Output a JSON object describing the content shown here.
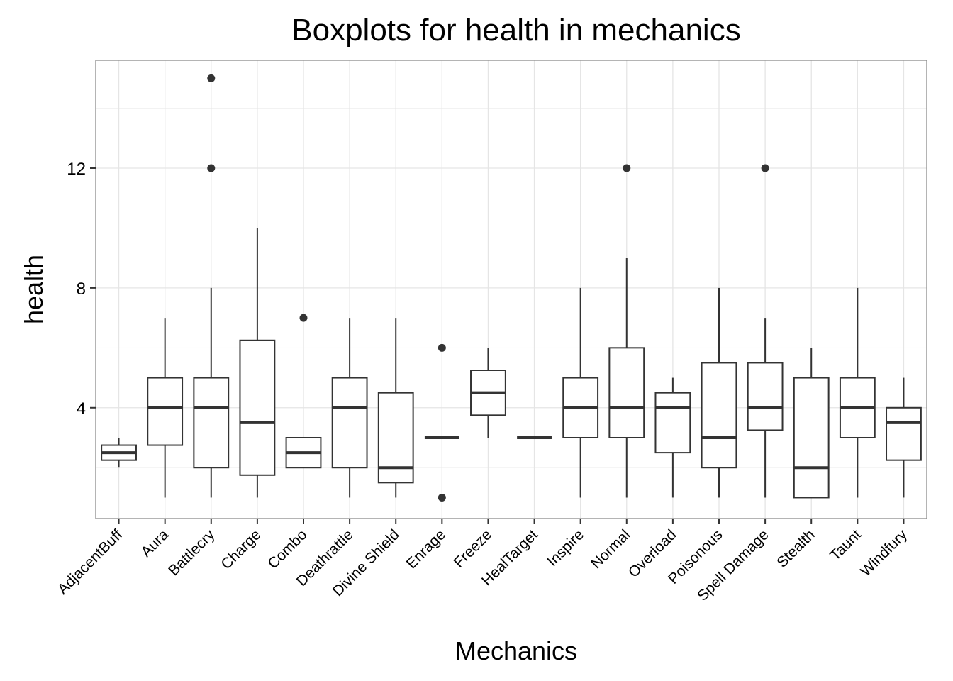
{
  "chart_data": {
    "type": "boxplot",
    "title": "Boxplots for health in mechanics",
    "xlabel": "Mechanics",
    "ylabel": "health",
    "ylim": [
      0.3,
      15.6
    ],
    "yticks": [
      4,
      8,
      12
    ],
    "ytick_labels": [
      "4",
      "8",
      "12"
    ],
    "grid": true,
    "legend": "none",
    "colors": {
      "box_stroke": "#333333",
      "grid": "#e5e5e5",
      "panel_border": "#8c8c8c"
    },
    "categories": [
      "AdjacentBuff",
      "Aura",
      "Battlecry",
      "Charge",
      "Combo",
      "Deathrattle",
      "Divine Shield",
      "Enrage",
      "Freeze",
      "HealTarget",
      "Inspire",
      "Normal",
      "Overload",
      "Poisonous",
      "Spell Damage",
      "Stealth",
      "Taunt",
      "Windfury"
    ],
    "boxes": [
      {
        "category": "AdjacentBuff",
        "min": 2,
        "q1": 2.25,
        "median": 2.5,
        "q3": 2.75,
        "max": 3,
        "outliers": []
      },
      {
        "category": "Aura",
        "min": 1,
        "q1": 2.75,
        "median": 4,
        "q3": 5,
        "max": 7,
        "outliers": []
      },
      {
        "category": "Battlecry",
        "min": 1,
        "q1": 2,
        "median": 4,
        "q3": 5,
        "max": 8,
        "outliers": [
          12,
          15
        ]
      },
      {
        "category": "Charge",
        "min": 1,
        "q1": 1.75,
        "median": 3.5,
        "q3": 6.25,
        "max": 10,
        "outliers": []
      },
      {
        "category": "Combo",
        "min": 2,
        "q1": 2,
        "median": 2.5,
        "q3": 3,
        "max": 3,
        "outliers": [
          7
        ]
      },
      {
        "category": "Deathrattle",
        "min": 1,
        "q1": 2,
        "median": 4,
        "q3": 5,
        "max": 7,
        "outliers": []
      },
      {
        "category": "Divine Shield",
        "min": 1,
        "q1": 1.5,
        "median": 2,
        "q3": 4.5,
        "max": 7,
        "outliers": []
      },
      {
        "category": "Enrage",
        "min": 3,
        "q1": 3,
        "median": 3,
        "q3": 3,
        "max": 3,
        "outliers": [
          6,
          1
        ]
      },
      {
        "category": "Freeze",
        "min": 3,
        "q1": 3.75,
        "median": 4.5,
        "q3": 5.25,
        "max": 6,
        "outliers": []
      },
      {
        "category": "HealTarget",
        "min": 3,
        "q1": 3,
        "median": 3,
        "q3": 3,
        "max": 3,
        "outliers": []
      },
      {
        "category": "Inspire",
        "min": 1,
        "q1": 3,
        "median": 4,
        "q3": 5,
        "max": 8,
        "outliers": []
      },
      {
        "category": "Normal",
        "min": 1,
        "q1": 3,
        "median": 4,
        "q3": 6,
        "max": 9,
        "outliers": [
          12
        ]
      },
      {
        "category": "Overload",
        "min": 1,
        "q1": 2.5,
        "median": 4,
        "q3": 4.5,
        "max": 5,
        "outliers": []
      },
      {
        "category": "Poisonous",
        "min": 1,
        "q1": 2,
        "median": 3,
        "q3": 5.5,
        "max": 8,
        "outliers": []
      },
      {
        "category": "Spell Damage",
        "min": 1,
        "q1": 3.25,
        "median": 4,
        "q3": 5.5,
        "max": 7,
        "outliers": [
          12
        ]
      },
      {
        "category": "Stealth",
        "min": 1,
        "q1": 1,
        "median": 2,
        "q3": 5,
        "max": 6,
        "outliers": []
      },
      {
        "category": "Taunt",
        "min": 1,
        "q1": 3,
        "median": 4,
        "q3": 5,
        "max": 8,
        "outliers": []
      },
      {
        "category": "Windfury",
        "min": 1,
        "q1": 2.25,
        "median": 3.5,
        "q3": 4,
        "max": 5,
        "outliers": []
      }
    ]
  }
}
